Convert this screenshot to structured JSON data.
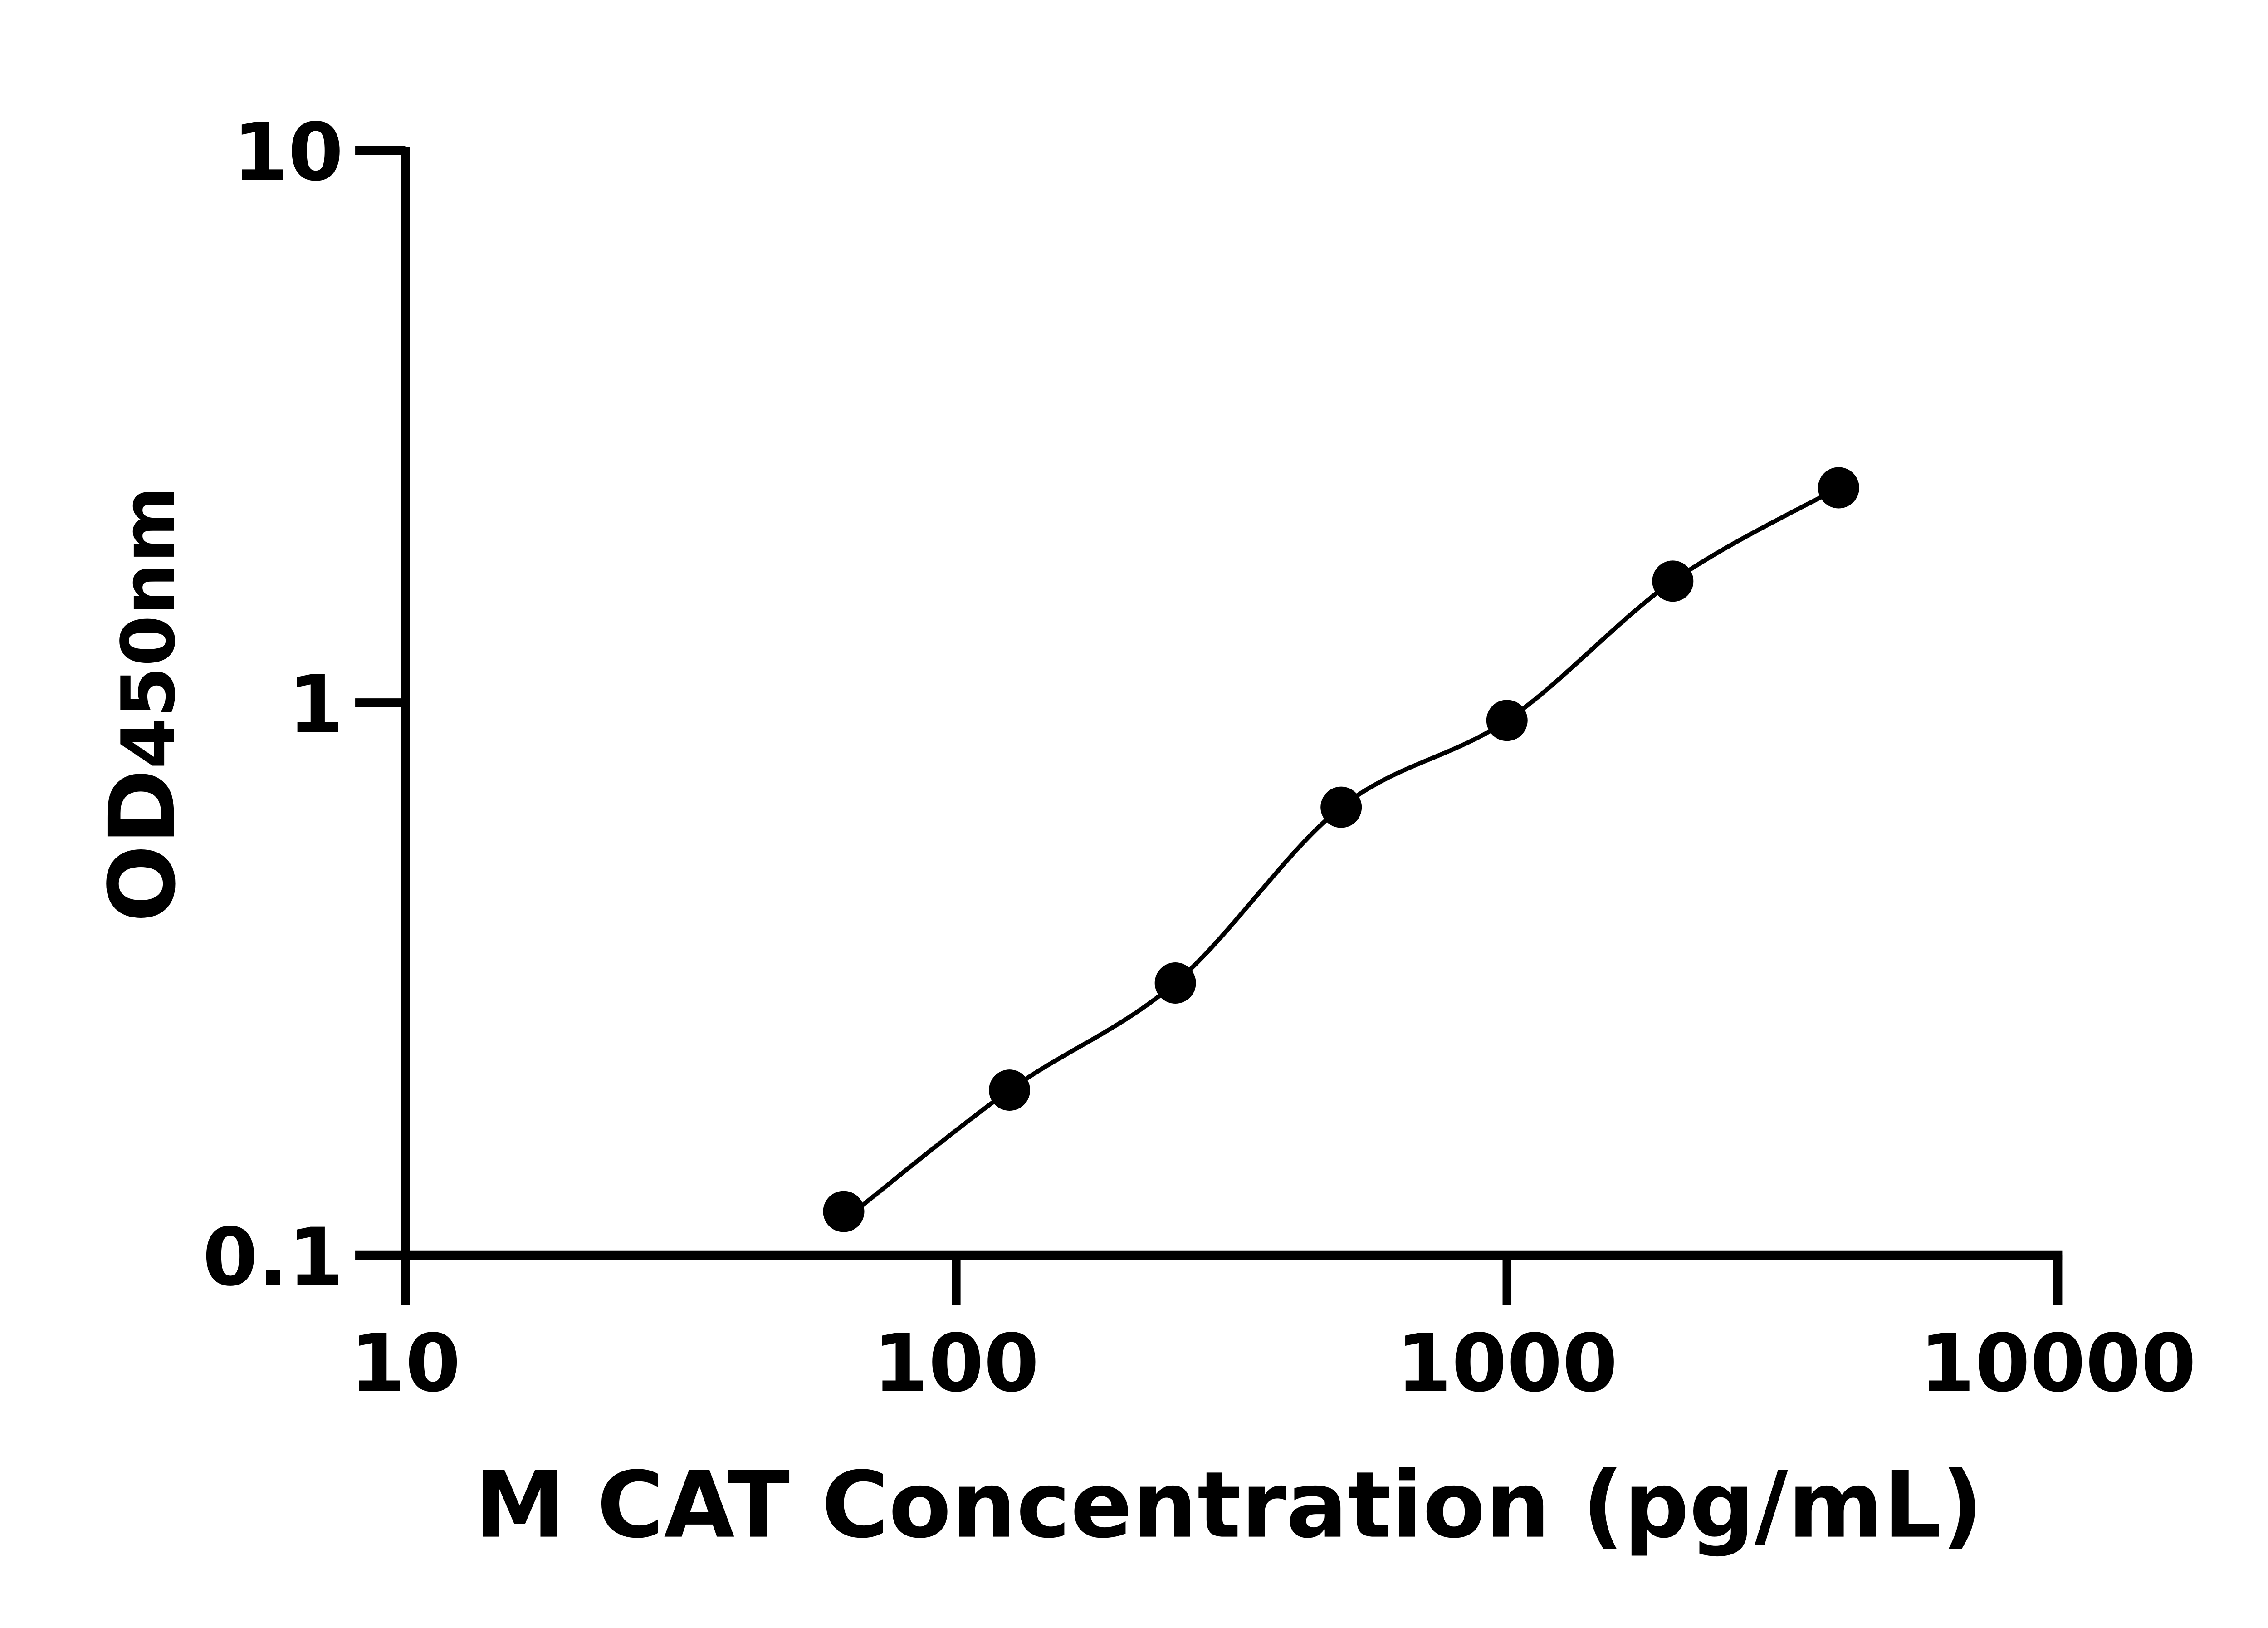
{
  "chart_data": {
    "type": "scatter",
    "title": "",
    "xlabel": "M CAT Concentration (pg/mL)",
    "ylabel": {
      "main": "OD",
      "sub": "450nm"
    },
    "x_scale": "log",
    "y_scale": "log",
    "xlim": [
      10,
      10000
    ],
    "ylim": [
      0.1,
      10
    ],
    "x_ticks": [
      "10",
      "100",
      "1000",
      "10000"
    ],
    "y_ticks": [
      "0.1",
      "1",
      "10"
    ],
    "grid": false,
    "legend": "none",
    "colors": {
      "marker": "#000000",
      "line": "#000000"
    },
    "series": [
      {
        "x": [
          62.5,
          125,
          250,
          500,
          1000,
          2000,
          4000
        ],
        "y": [
          0.12,
          0.199,
          0.311,
          0.647,
          0.929,
          1.66,
          2.45
        ],
        "fit_line": true
      }
    ]
  }
}
